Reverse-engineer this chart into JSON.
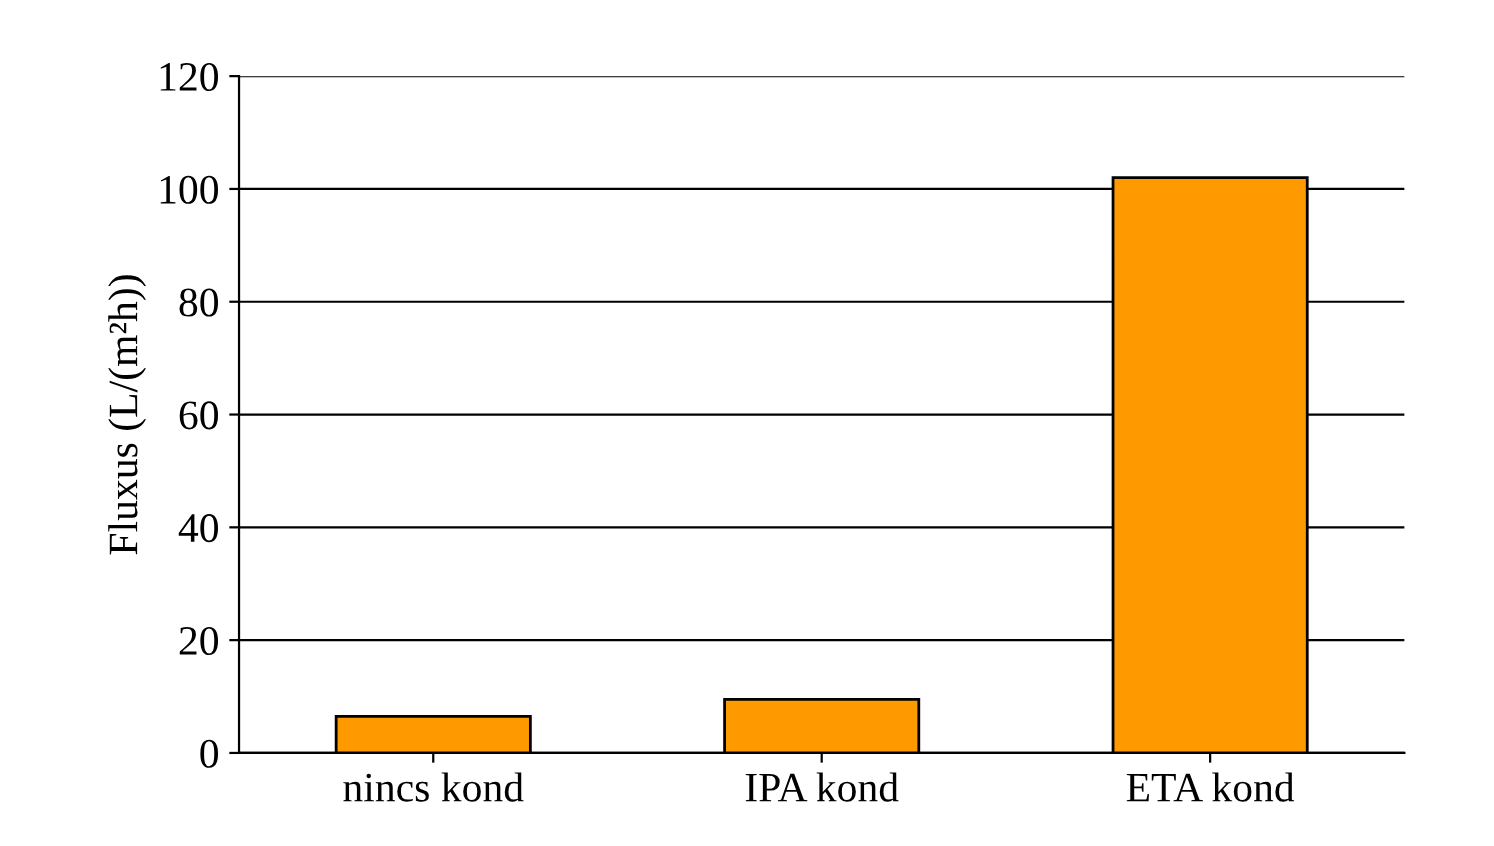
{
  "chart_data": {
    "type": "bar",
    "ylabel": "Fluxus (L/(m²h))",
    "categories": [
      "nincs kond",
      "IPA kond",
      "ETA kond"
    ],
    "values": [
      6.5,
      9.5,
      102
    ],
    "color": "#ff9900",
    "ylim": [
      0,
      120
    ],
    "yticks": [
      0,
      20,
      40,
      60,
      80,
      100,
      120
    ],
    "grid": "y"
  }
}
